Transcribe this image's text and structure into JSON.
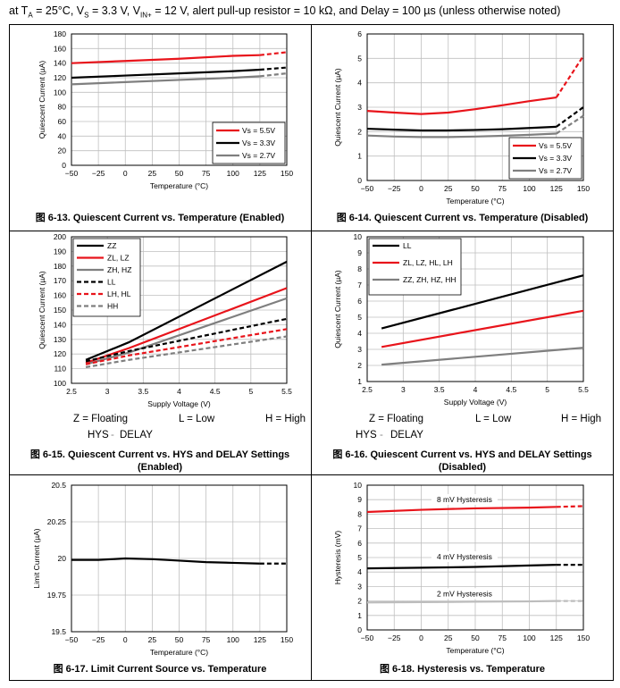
{
  "header": {
    "p1": "at T",
    "s1": "A",
    "p2": " = 25°C, V",
    "s2": "S",
    "p3": " = 3.3 V, V",
    "s3": "IN+",
    "p4": " = 12 V, alert pull-up resistor = 10 kΩ, and Delay = 100 µs (unless otherwise noted)"
  },
  "captions": {
    "c13": "图 6-13. Quiescent Current vs. Temperature (Enabled)",
    "c14": "图 6-14. Quiescent Current vs. Temperature (Disabled)",
    "c15a": "图 6-15. Quiescent Current vs. HYS and DELAY Settings",
    "c15b": "(Enabled)",
    "c16a": "图 6-16. Quiescent Current vs. HYS and DELAY Settings",
    "c16b": "(Disabled)",
    "c17": "图 6-17. Limit Current Source vs. Temperature",
    "c18": "图 6-18. Hysteresis vs. Temperature"
  },
  "settings_left": {
    "z": "Z = Floating",
    "l": "L = Low",
    "h": "H = High",
    "hys": "HYS",
    "dash": "-",
    "delay": "DELAY"
  },
  "settings_right": {
    "z": "Z = Floating",
    "l": "L = Low",
    "h": "H = High",
    "hys": "HYS",
    "dash": "-",
    "delay": "DELAY"
  },
  "chart_data": [
    {
      "id": "c13",
      "type": "line",
      "xlabel": "Temperature (°C)",
      "ylabel": "Quiescent Current (µA)",
      "xlim": [
        -50,
        150
      ],
      "ylim": [
        0,
        180
      ],
      "xticks": [
        -50,
        -25,
        0,
        25,
        50,
        75,
        100,
        125,
        150
      ],
      "yticks": [
        0,
        20,
        40,
        60,
        80,
        100,
        120,
        140,
        160,
        180
      ],
      "xtick_labels": [
        "−50",
        "−25",
        "0",
        "25",
        "50",
        "75",
        "100",
        "125",
        "150"
      ],
      "legend": "bottom-right",
      "dash_from_x": 125,
      "series": [
        {
          "name": "Vs = 5.5V",
          "color": "#e8141b",
          "dashed": false,
          "x": [
            -50,
            0,
            50,
            100,
            125,
            150
          ],
          "y": [
            140,
            143,
            146,
            150,
            151,
            155
          ]
        },
        {
          "name": "Vs = 3.3V",
          "color": "#000000",
          "dashed": false,
          "x": [
            -50,
            0,
            50,
            100,
            125,
            150
          ],
          "y": [
            120,
            123,
            126,
            129,
            131,
            134
          ]
        },
        {
          "name": "Vs = 2.7V",
          "color": "#7f7f7f",
          "dashed": false,
          "x": [
            -50,
            0,
            50,
            100,
            125,
            150
          ],
          "y": [
            111,
            114,
            117,
            120,
            122,
            126
          ]
        }
      ]
    },
    {
      "id": "c14",
      "type": "line",
      "xlabel": "Temperature (°C)",
      "ylabel": "Quiescent Current (µA)",
      "xlim": [
        -50,
        150
      ],
      "ylim": [
        0,
        6
      ],
      "xticks": [
        -50,
        -25,
        0,
        25,
        50,
        75,
        100,
        125,
        150
      ],
      "yticks": [
        0,
        1,
        2,
        3,
        4,
        5,
        6
      ],
      "xtick_labels": [
        "−50",
        "−25",
        "0",
        "25",
        "50",
        "75",
        "100",
        "125",
        "150"
      ],
      "legend": "bottom-right",
      "dash_from_x": 125,
      "series": [
        {
          "name": "Vs = 5.5V",
          "color": "#e8141b",
          "dashed": false,
          "x": [
            -50,
            -25,
            0,
            25,
            50,
            75,
            100,
            125,
            150
          ],
          "y": [
            2.85,
            2.78,
            2.72,
            2.78,
            2.92,
            3.08,
            3.25,
            3.4,
            5.1
          ]
        },
        {
          "name": "Vs = 3.3V",
          "color": "#000000",
          "dashed": false,
          "x": [
            -50,
            -25,
            0,
            25,
            50,
            75,
            100,
            125,
            150
          ],
          "y": [
            2.12,
            2.08,
            2.05,
            2.05,
            2.07,
            2.1,
            2.15,
            2.2,
            3.0
          ]
        },
        {
          "name": "Vs = 2.7V",
          "color": "#7f7f7f",
          "dashed": false,
          "x": [
            -50,
            -25,
            0,
            25,
            50,
            75,
            100,
            125,
            150
          ],
          "y": [
            1.84,
            1.8,
            1.78,
            1.78,
            1.8,
            1.83,
            1.87,
            1.92,
            2.65
          ]
        }
      ]
    },
    {
      "id": "c15",
      "type": "line",
      "xlabel": "Supply Voltage (V)",
      "ylabel": "Quiescent Current (µA)",
      "xlim": [
        2.5,
        5.5
      ],
      "ylim": [
        100,
        200
      ],
      "xticks": [
        2.5,
        3,
        3.5,
        4,
        4.5,
        5,
        5.5
      ],
      "yticks": [
        100,
        110,
        120,
        130,
        140,
        150,
        160,
        170,
        180,
        190,
        200
      ],
      "xtick_labels": [
        "2.5",
        "3",
        "3.5",
        "4",
        "4.5",
        "5",
        "5.5"
      ],
      "legend": "top-left",
      "series": [
        {
          "name": "ZZ",
          "color": "#000000",
          "dashed": false,
          "x": [
            2.7,
            3.3,
            5.5
          ],
          "y": [
            116,
            128,
            183
          ]
        },
        {
          "name": "ZL, LZ",
          "color": "#e8141b",
          "dashed": false,
          "x": [
            2.7,
            3.3,
            5.5
          ],
          "y": [
            114,
            124,
            165
          ]
        },
        {
          "name": "ZH, HZ",
          "color": "#7f7f7f",
          "dashed": false,
          "x": [
            2.7,
            3.3,
            5.5
          ],
          "y": [
            113,
            121,
            158
          ]
        },
        {
          "name": "LL",
          "color": "#000000",
          "dashed": true,
          "x": [
            2.7,
            3.3,
            5.5
          ],
          "y": [
            115,
            122,
            144
          ]
        },
        {
          "name": "LH, HL",
          "color": "#e8141b",
          "dashed": true,
          "x": [
            2.7,
            3.3,
            5.5
          ],
          "y": [
            113,
            119,
            137
          ]
        },
        {
          "name": "HH",
          "color": "#7f7f7f",
          "dashed": true,
          "x": [
            2.7,
            3.3,
            5.5
          ],
          "y": [
            111,
            116,
            132
          ]
        }
      ]
    },
    {
      "id": "c16",
      "type": "line",
      "xlabel": "Supply Voltage (V)",
      "ylabel": "Quiescent Current (µA)",
      "xlim": [
        2.5,
        5.5
      ],
      "ylim": [
        1,
        10
      ],
      "xticks": [
        2.5,
        3,
        3.5,
        4,
        4.5,
        5,
        5.5
      ],
      "yticks": [
        1,
        2,
        3,
        4,
        5,
        6,
        7,
        8,
        9,
        10
      ],
      "xtick_labels": [
        "2.5",
        "3",
        "3.5",
        "4",
        "4.5",
        "5",
        "5.5"
      ],
      "legend": "top-left",
      "series": [
        {
          "name": "LL",
          "color": "#000000",
          "dashed": false,
          "x": [
            2.7,
            5.5
          ],
          "y": [
            4.3,
            7.6
          ]
        },
        {
          "name": "ZL, LZ, HL, LH",
          "color": "#e8141b",
          "dashed": false,
          "x": [
            2.7,
            5.5
          ],
          "y": [
            3.15,
            5.4
          ]
        },
        {
          "name": "ZZ, ZH, HZ, HH",
          "color": "#7f7f7f",
          "dashed": false,
          "x": [
            2.7,
            5.5
          ],
          "y": [
            2.05,
            3.1
          ]
        }
      ]
    },
    {
      "id": "c17",
      "type": "line",
      "xlabel": "Temperature (°C)",
      "ylabel": "Limit Current (µA)",
      "xlim": [
        -50,
        150
      ],
      "ylim": [
        19.5,
        20.5
      ],
      "xticks": [
        -50,
        -25,
        0,
        25,
        50,
        75,
        100,
        125,
        150
      ],
      "yticks": [
        19.5,
        19.75,
        20,
        20.25,
        20.5
      ],
      "ytick_labels": [
        "19.5",
        "19.75",
        "20",
        "20.25",
        "20.5"
      ],
      "xtick_labels": [
        "−50",
        "−25",
        "0",
        "25",
        "50",
        "75",
        "100",
        "125",
        "150"
      ],
      "legend": "none",
      "dash_from_x": 125,
      "series": [
        {
          "name": "Limit Current",
          "color": "#000000",
          "dashed": false,
          "x": [
            -50,
            -25,
            0,
            25,
            50,
            75,
            100,
            125,
            150
          ],
          "y": [
            19.99,
            19.99,
            20.0,
            19.995,
            19.985,
            19.975,
            19.97,
            19.965,
            19.965
          ]
        }
      ]
    },
    {
      "id": "c18",
      "type": "line",
      "xlabel": "Temperature (°C)",
      "ylabel": "Hysteresis (mV)",
      "xlim": [
        -50,
        150
      ],
      "ylim": [
        0,
        10
      ],
      "xticks": [
        -50,
        -25,
        0,
        25,
        50,
        75,
        100,
        125,
        150
      ],
      "yticks": [
        0,
        1,
        2,
        3,
        4,
        5,
        6,
        7,
        8,
        9,
        10
      ],
      "xtick_labels": [
        "−50",
        "−25",
        "0",
        "25",
        "50",
        "75",
        "100",
        "125",
        "150"
      ],
      "legend": "inline",
      "dash_from_x": 125,
      "series": [
        {
          "name": "8 mV Hysteresis",
          "color": "#e8141b",
          "dashed": false,
          "x": [
            -50,
            0,
            50,
            100,
            125,
            150
          ],
          "y": [
            8.15,
            8.3,
            8.4,
            8.45,
            8.5,
            8.55
          ],
          "label_x": 40,
          "label_y": 8.95
        },
        {
          "name": "4 mV Hysteresis",
          "color": "#000000",
          "dashed": false,
          "x": [
            -50,
            0,
            50,
            100,
            125,
            150
          ],
          "y": [
            4.25,
            4.3,
            4.35,
            4.45,
            4.5,
            4.5
          ],
          "label_x": 40,
          "label_y": 5.0
        },
        {
          "name": "2 mV Hysteresis",
          "color": "#bdbdbd",
          "dashed": false,
          "x": [
            -50,
            0,
            50,
            100,
            125,
            150
          ],
          "y": [
            1.9,
            1.92,
            1.95,
            1.97,
            2.0,
            2.0
          ],
          "label_x": 40,
          "label_y": 2.45
        }
      ]
    }
  ]
}
